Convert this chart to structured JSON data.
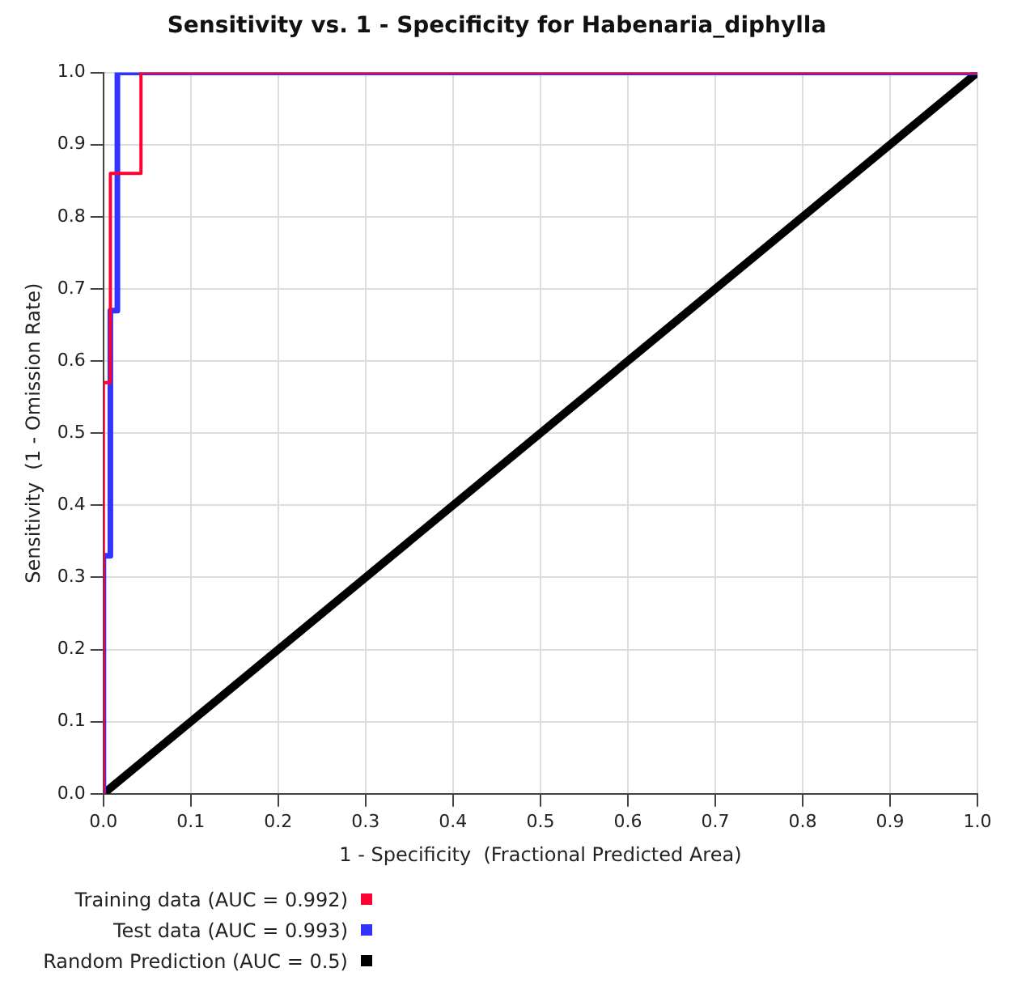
{
  "chart_data": {
    "type": "line",
    "title": "Sensitivity vs. 1 - Specificity for Habenaria_diphylla",
    "xlabel": "1 - Specificity  (Fractional Predicted Area)",
    "ylabel": "Sensitivity  (1 - Omission Rate)",
    "series": [
      {
        "name": "Training data (AUC = 0.992)",
        "color": "#ff0033",
        "x": [
          0,
          0,
          0.008,
          0.008,
          0.043,
          0.043,
          1
        ],
        "values": [
          0,
          0.57,
          0.57,
          0.86,
          0.86,
          1,
          1
        ]
      },
      {
        "name": "Test data (AUC = 0.993)",
        "color": "#3333ff",
        "x": [
          0,
          0,
          0.008,
          0.008,
          0.016,
          0.016,
          1
        ],
        "values": [
          0,
          0.33,
          0.33,
          0.67,
          0.67,
          1,
          1
        ]
      },
      {
        "name": "Random Prediction (AUC = 0.5)",
        "color": "#000000",
        "x": [
          0,
          1
        ],
        "values": [
          0,
          1
        ]
      }
    ],
    "xlim": [
      0,
      1
    ],
    "ylim": [
      0,
      1
    ],
    "xticks": [
      {
        "value": 0,
        "label": "0.0"
      },
      {
        "value": 0.1,
        "label": "0.1"
      },
      {
        "value": 0.2,
        "label": "0.2"
      },
      {
        "value": 0.3,
        "label": "0.3"
      },
      {
        "value": 0.4,
        "label": "0.4"
      },
      {
        "value": 0.5,
        "label": "0.5"
      },
      {
        "value": 0.6,
        "label": "0.6"
      },
      {
        "value": 0.7,
        "label": "0.7"
      },
      {
        "value": 0.8,
        "label": "0.8"
      },
      {
        "value": 0.9,
        "label": "0.9"
      },
      {
        "value": 1,
        "label": "1.0"
      }
    ],
    "yticks": [
      {
        "value": 0,
        "label": "0.0"
      },
      {
        "value": 0.1,
        "label": "0.1"
      },
      {
        "value": 0.2,
        "label": "0.2"
      },
      {
        "value": 0.3,
        "label": "0.3"
      },
      {
        "value": 0.4,
        "label": "0.4"
      },
      {
        "value": 0.5,
        "label": "0.5"
      },
      {
        "value": 0.6,
        "label": "0.6"
      },
      {
        "value": 0.7,
        "label": "0.7"
      },
      {
        "value": 0.8,
        "label": "0.8"
      },
      {
        "value": 0.9,
        "label": "0.9"
      },
      {
        "value": 1,
        "label": "1.0"
      }
    ],
    "grid": true,
    "legend": "bottom left",
    "marker": "none",
    "line_style": "solid"
  }
}
